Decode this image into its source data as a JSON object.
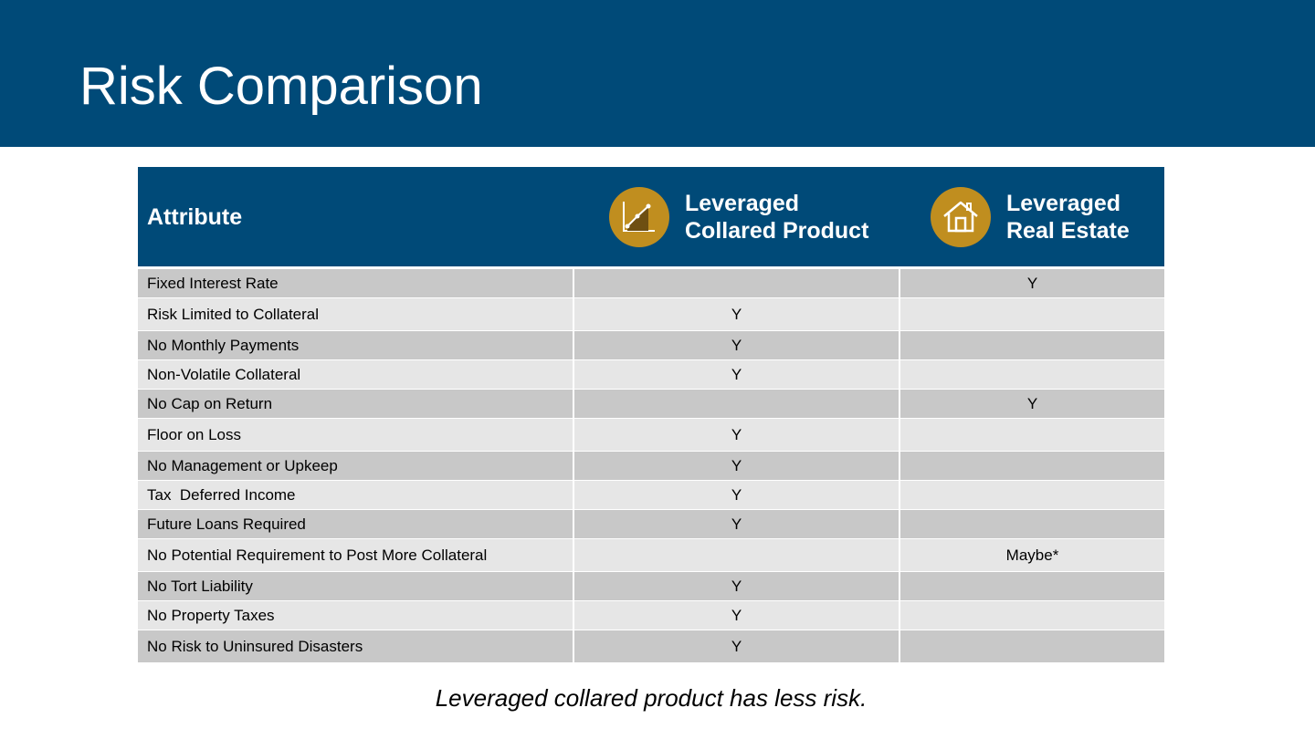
{
  "slide": {
    "title": "Risk Comparison",
    "caption": "Leveraged collared product has less risk."
  },
  "colors": {
    "header_blue": "#004a78",
    "icon_gold": "#c08e1f",
    "row_dark": "#c8c8c8",
    "row_light": "#e6e6e6"
  },
  "table": {
    "headers": {
      "attribute": "Attribute",
      "product": "Leveraged\nCollared Product",
      "real_estate": "Leveraged\nReal Estate"
    },
    "header_icons": {
      "product": "chart-line-icon",
      "real_estate": "house-icon"
    },
    "rows": [
      {
        "attribute": "Fixed Interest Rate",
        "product": "",
        "real_estate": "Y"
      },
      {
        "attribute": "Risk Limited to Collateral",
        "product": "Y",
        "real_estate": ""
      },
      {
        "attribute": "No Monthly Payments",
        "product": "Y",
        "real_estate": ""
      },
      {
        "attribute": "Non-Volatile Collateral",
        "product": "Y",
        "real_estate": ""
      },
      {
        "attribute": "No Cap on Return",
        "product": "",
        "real_estate": "Y"
      },
      {
        "attribute": "Floor on Loss",
        "product": "Y",
        "real_estate": ""
      },
      {
        "attribute": "No Management or Upkeep",
        "product": "Y",
        "real_estate": ""
      },
      {
        "attribute": "Tax  Deferred Income",
        "product": "Y",
        "real_estate": ""
      },
      {
        "attribute": "Future Loans Required",
        "product": "Y",
        "real_estate": ""
      },
      {
        "attribute": "No Potential Requirement to Post More Collateral",
        "product": "",
        "real_estate": "Maybe*"
      },
      {
        "attribute": "No Tort Liability",
        "product": "Y",
        "real_estate": ""
      },
      {
        "attribute": "No Property Taxes",
        "product": "Y",
        "real_estate": ""
      },
      {
        "attribute": "No Risk to Uninsured Disasters",
        "product": "Y",
        "real_estate": ""
      }
    ]
  }
}
